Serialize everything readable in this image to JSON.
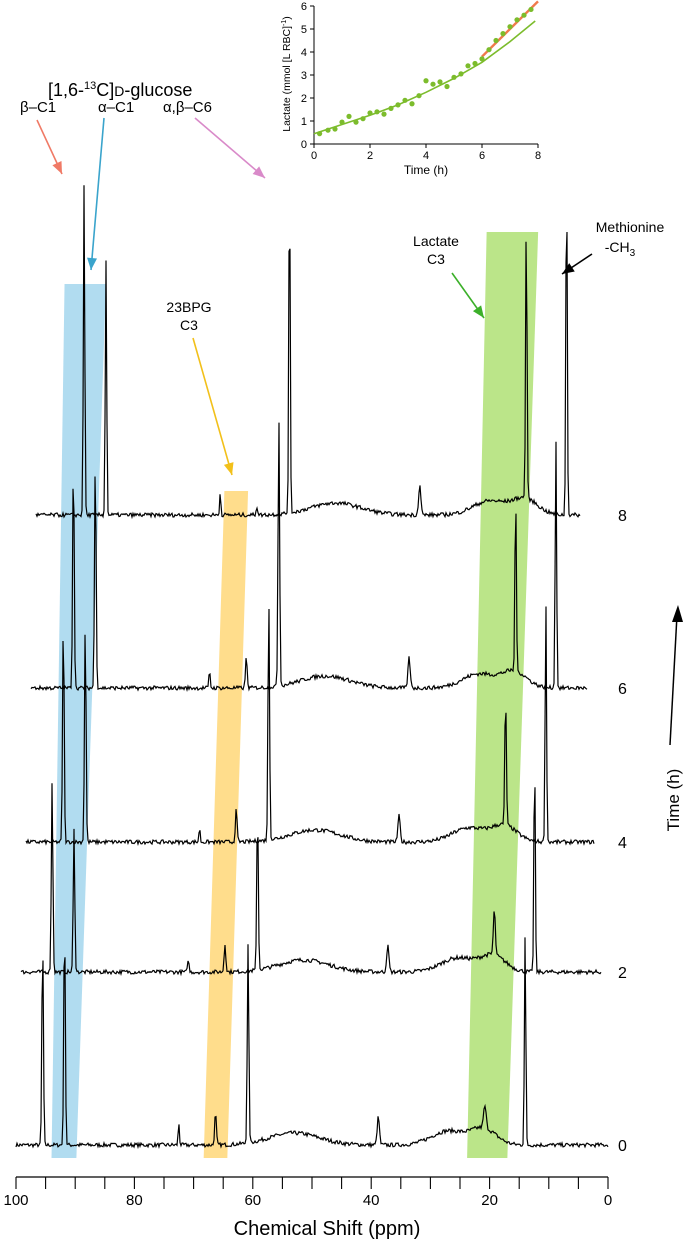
{
  "chart_data": [
    {
      "type": "line",
      "title": "",
      "xlabel": "Chemical Shift (ppm)",
      "ylabel": "Time (h)",
      "xlim": [
        100,
        0
      ],
      "x_reversed": true,
      "x_ticks": [
        100,
        80,
        60,
        40,
        20,
        0
      ],
      "x_tick_labels": [
        "100",
        "80",
        "60",
        "40",
        "20",
        "0"
      ],
      "grid": false,
      "series": [
        {
          "name": "8",
          "time_h": 8
        },
        {
          "name": "6",
          "time_h": 6
        },
        {
          "name": "4",
          "time_h": 4
        },
        {
          "name": "2",
          "time_h": 2
        },
        {
          "name": "0",
          "time_h": 0
        }
      ],
      "peaks_ppm_at_t0": {
        "beta_c1": 95.5,
        "alpha_c1": 91.8,
        "bpg_c3": 66.3,
        "c6": 60.8,
        "small_72": 72.5,
        "broad_53": 53.5,
        "peak_39": 38.8,
        "lactate_c3": 20.8,
        "met_ch3": 14.0
      },
      "bands": [
        {
          "label": "blue",
          "color": "#a8d8ee",
          "ppm_bottom": [
            94.0,
            89.8
          ],
          "ppm_top": [
            91.8,
            84.8
          ]
        },
        {
          "label": "yellow",
          "color": "#ffd980",
          "ppm_bottom": [
            68.3,
            64.3
          ],
          "ppm_top": [
            64.8,
            60.8
          ]
        },
        {
          "label": "green",
          "color": "#b4e27c",
          "ppm_bottom": [
            23.8,
            17.0
          ],
          "ppm_top": [
            20.5,
            11.8
          ]
        }
      ],
      "annotations": [
        {
          "id": "glucose_title",
          "parts": [
            "[1,6-",
            "13",
            "C]",
            "D",
            "-glucose"
          ],
          "color": "#000000"
        },
        {
          "id": "beta_c1",
          "text": "β–C1",
          "color": "#f07a66"
        },
        {
          "id": "alpha_c1",
          "text": "α–C1",
          "color": "#3aa4cc"
        },
        {
          "id": "c6",
          "text": "α,β–C6",
          "color": "#d98ac9"
        },
        {
          "id": "bpg",
          "lines": [
            "23BPG",
            "C3"
          ],
          "color": "#f2c01a"
        },
        {
          "id": "lactate",
          "lines": [
            "Lactate",
            "C3"
          ],
          "color": "#3cb02a"
        },
        {
          "id": "methionine",
          "lines": [
            "Methionine",
            "-CH",
            "3"
          ],
          "color": "#000000"
        }
      ]
    },
    {
      "type": "scatter",
      "title": "",
      "xlabel": "Time (h)",
      "ylabel": "Lactate (mmol [L RBC]",
      "ylabel_sup": "-1",
      "ylabel_close": ")",
      "xlim": [
        0,
        8
      ],
      "ylim": [
        0,
        6
      ],
      "x_ticks": [
        0,
        2,
        4,
        6,
        8
      ],
      "x_tick_labels": [
        "0",
        "2",
        "4",
        "6",
        "8"
      ],
      "y_ticks": [
        0,
        1,
        2,
        3,
        4,
        5,
        6
      ],
      "y_tick_labels": [
        "0",
        "1",
        "2",
        "3",
        "4",
        "5",
        "6"
      ],
      "grid": false,
      "point_color": "#7cbc2c",
      "x": [
        0.2,
        0.5,
        0.75,
        1.0,
        1.25,
        1.5,
        1.75,
        2.0,
        2.25,
        2.5,
        2.75,
        3.0,
        3.25,
        3.5,
        3.75,
        4.0,
        4.25,
        4.5,
        4.75,
        5.0,
        5.25,
        5.5,
        5.75,
        6.0,
        6.25,
        6.5,
        6.75,
        7.0,
        7.25,
        7.5,
        7.75
      ],
      "y": [
        0.45,
        0.6,
        0.65,
        0.95,
        1.2,
        0.95,
        1.1,
        1.35,
        1.4,
        1.3,
        1.55,
        1.7,
        1.9,
        1.75,
        2.1,
        2.75,
        2.6,
        2.7,
        2.5,
        2.9,
        3.05,
        3.4,
        3.5,
        3.7,
        4.1,
        4.5,
        4.8,
        5.1,
        5.4,
        5.6,
        5.85
      ],
      "fits": [
        {
          "color": "#7cbc2c",
          "x": [
            0,
            1,
            2,
            3,
            4,
            5,
            6,
            7,
            7.9
          ],
          "y": [
            0.45,
            0.85,
            1.25,
            1.7,
            2.25,
            2.85,
            3.55,
            4.45,
            5.35
          ]
        },
        {
          "color": "#f07a4c",
          "x": [
            6.0,
            8.0
          ],
          "y": [
            3.8,
            6.2
          ]
        }
      ]
    }
  ]
}
